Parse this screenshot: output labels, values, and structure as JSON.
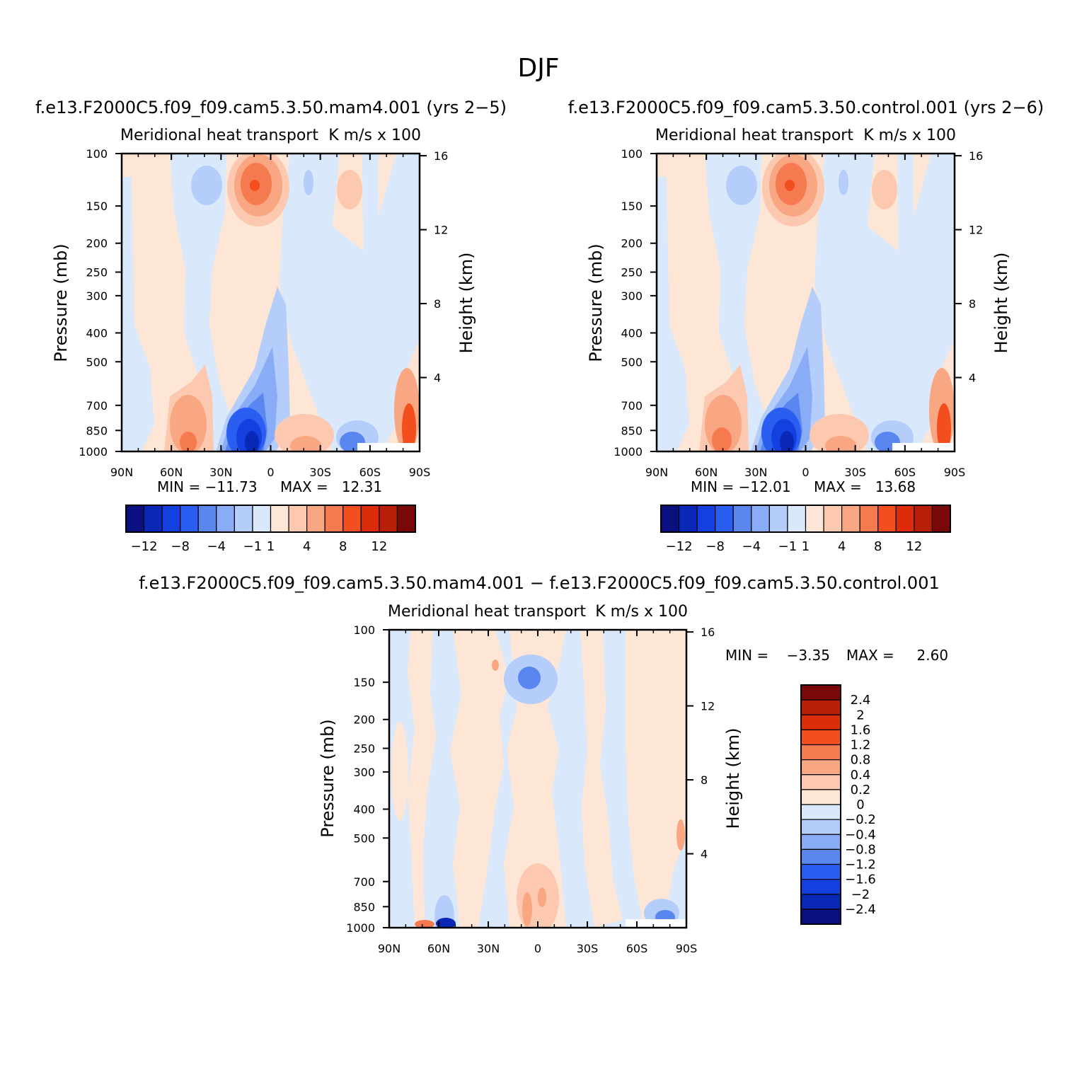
{
  "page_title": "DJF",
  "chart_data": [
    {
      "type": "heatmap",
      "title": "f.e13.F2000C5.f09_f09.cam5.3.50.mam4.001 (yrs 2−5)",
      "subtitle_left": "Meridional heat transport",
      "subtitle_right": "K m/s x 100",
      "xlabel": "",
      "ylabel": "Pressure (mb)",
      "y2label": "Height (km)",
      "x_ticks": [
        "90N",
        "60N",
        "30N",
        "0",
        "30S",
        "60S",
        "90S"
      ],
      "y_ticks": [
        "100",
        "150",
        "200",
        "250",
        "300",
        "400",
        "500",
        "700",
        "850",
        "1000"
      ],
      "y2_ticks": [
        "16",
        "12",
        "8",
        "4"
      ],
      "ylim": [
        1000,
        100
      ],
      "min_label": "MIN = −11.73",
      "max_label": "MAX =   12.31",
      "min": -11.73,
      "max": 12.31,
      "colorbar_labels": [
        "−12",
        "−8",
        "−4",
        "−1",
        "1",
        "4",
        "8",
        "12"
      ],
      "colorbar_levels": [
        -12,
        -10,
        -8,
        -6,
        -4,
        -2,
        -1,
        0,
        1,
        2,
        4,
        6,
        8,
        10,
        12
      ]
    },
    {
      "type": "heatmap",
      "title": "f.e13.F2000C5.f09_f09.cam5.3.50.control.001 (yrs 2−6)",
      "subtitle_left": "Meridional heat transport",
      "subtitle_right": "K m/s x 100",
      "xlabel": "",
      "ylabel": "Pressure (mb)",
      "y2label": "Height (km)",
      "x_ticks": [
        "90N",
        "60N",
        "30N",
        "0",
        "30S",
        "60S",
        "90S"
      ],
      "y_ticks": [
        "100",
        "150",
        "200",
        "250",
        "300",
        "400",
        "500",
        "700",
        "850",
        "1000"
      ],
      "y2_ticks": [
        "16",
        "12",
        "8",
        "4"
      ],
      "ylim": [
        1000,
        100
      ],
      "min_label": "MIN = −12.01",
      "max_label": "MAX =   13.68",
      "min": -12.01,
      "max": 13.68,
      "colorbar_labels": [
        "−12",
        "−8",
        "−4",
        "−1",
        "1",
        "4",
        "8",
        "12"
      ],
      "colorbar_levels": [
        -12,
        -10,
        -8,
        -6,
        -4,
        -2,
        -1,
        0,
        1,
        2,
        4,
        6,
        8,
        10,
        12
      ]
    },
    {
      "type": "heatmap",
      "title": "f.e13.F2000C5.f09_f09.cam5.3.50.mam4.001 − f.e13.F2000C5.f09_f09.cam5.3.50.control.001",
      "subtitle_left": "Meridional heat transport",
      "subtitle_right": "K m/s x 100",
      "xlabel": "",
      "ylabel": "Pressure (mb)",
      "y2label": "Height (km)",
      "x_ticks": [
        "90N",
        "60N",
        "30N",
        "0",
        "30S",
        "60S",
        "90S"
      ],
      "y_ticks": [
        "100",
        "150",
        "200",
        "250",
        "300",
        "400",
        "500",
        "700",
        "850",
        "1000"
      ],
      "y2_ticks": [
        "16",
        "12",
        "8",
        "4"
      ],
      "ylim": [
        1000,
        100
      ],
      "min_label": "MIN =    −3.35",
      "max_label": "MAX =     2.60",
      "min": -3.35,
      "max": 2.6,
      "colorbar_labels": [
        "2.4",
        "2",
        "1.6",
        "1.2",
        "0.8",
        "0.4",
        "0.2",
        "0",
        "−0.2",
        "−0.4",
        "−0.8",
        "−1.2",
        "−1.6",
        "−2",
        "−2.4"
      ],
      "colorbar_levels": [
        2.4,
        2,
        1.6,
        1.2,
        0.8,
        0.4,
        0.2,
        0,
        -0.2,
        -0.4,
        -0.8,
        -1.2,
        -1.6,
        -2,
        -2.4
      ]
    }
  ],
  "colors": {
    "palette": [
      "#0a1080",
      "#0a28b8",
      "#1440e0",
      "#2a5ef0",
      "#5a86f0",
      "#88acf5",
      "#b4cdfa",
      "#d9e9fb",
      "#fde6d6",
      "#fcc9b0",
      "#f9a682",
      "#f67a50",
      "#f24e1e",
      "#dc2c0a",
      "#b81e08",
      "#7a0808"
    ]
  }
}
